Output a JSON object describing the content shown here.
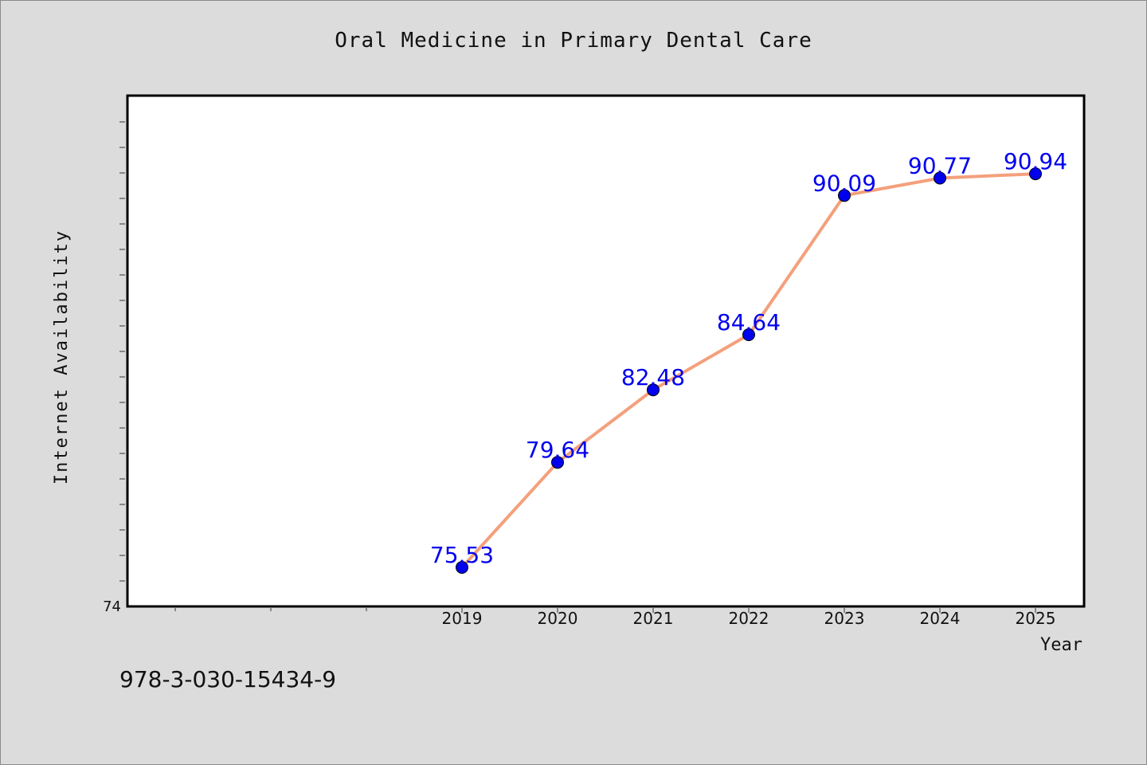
{
  "chart_data": {
    "type": "line",
    "title": "Oral Medicine in Primary Dental Care",
    "xlabel": "Year",
    "ylabel": "Internet Availability",
    "x": [
      "2019",
      "2020",
      "2021",
      "2022",
      "2023",
      "2024",
      "2025"
    ],
    "values": [
      75.53,
      79.64,
      82.48,
      84.64,
      90.09,
      90.77,
      90.94
    ],
    "data_labels": [
      "75.53",
      "79.64",
      "82.48",
      "84.64",
      "90.09",
      "90.77",
      "90.94"
    ],
    "y_tick_labels": [
      "74"
    ],
    "ylim": [
      74,
      94
    ],
    "grid": false,
    "line_color": "#f4a07c",
    "marker_color": "#0000ee",
    "label_color": "#0000ee"
  },
  "footer": {
    "isbn": "978-3-030-15434-9"
  }
}
